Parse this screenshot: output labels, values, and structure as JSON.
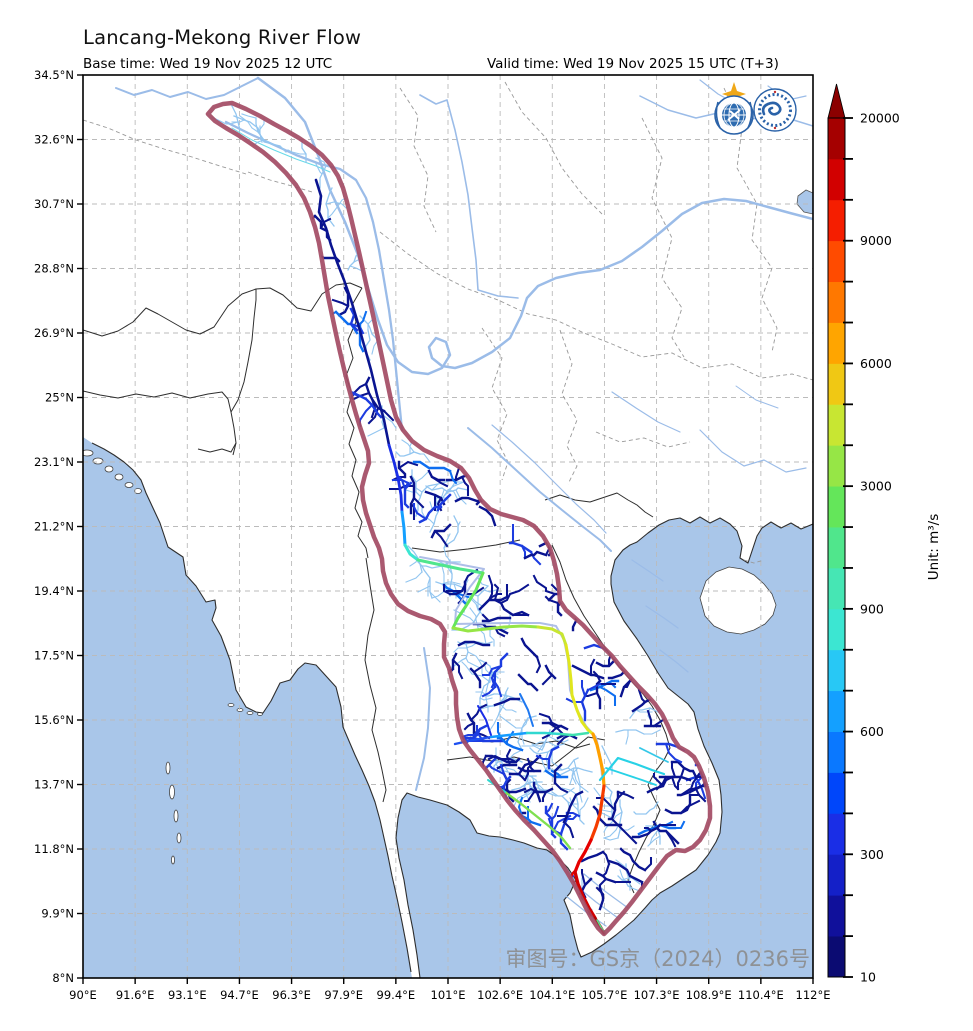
{
  "header": {
    "title": "Lancang-Mekong River Flow",
    "base_time": "Base time: Wed 19 Nov 2025 12 UTC",
    "valid_time": "Valid time: Wed 19 Nov 2025 15 UTC (T+3)"
  },
  "axes": {
    "x_ticks": [
      "90°E",
      "91.6°E",
      "93.1°E",
      "94.7°E",
      "96.3°E",
      "97.9°E",
      "99.4°E",
      "101°E",
      "102.6°E",
      "104.1°E",
      "105.7°E",
      "107.3°E",
      "108.9°E",
      "110.4°E",
      "112°E"
    ],
    "y_ticks_bottom_to_top": [
      "8°N",
      "9.9°N",
      "11.8°N",
      "13.7°N",
      "15.6°N",
      "17.5°N",
      "19.4°N",
      "21.2°N",
      "23.1°N",
      "25°N",
      "26.9°N",
      "28.8°N",
      "30.7°N",
      "32.6°N",
      "34.5°N"
    ]
  },
  "colorbar": {
    "unit_label": "Unit: m³/s",
    "levels_bottom_to_top": [
      10,
      100,
      200,
      300,
      400,
      500,
      600,
      700,
      800,
      900,
      1000,
      2000,
      3000,
      4000,
      5000,
      6000,
      7000,
      8000,
      9000,
      10000,
      15000,
      20000
    ],
    "labeled_levels": [
      10,
      300,
      600,
      900,
      3000,
      6000,
      9000,
      20000
    ],
    "colors_bottom_to_top": [
      "#0B0B72",
      "#10109B",
      "#1420C8",
      "#1A2EE6",
      "#0046FA",
      "#0A78FF",
      "#14A0FF",
      "#28C8F5",
      "#3CE6D2",
      "#46E6B4",
      "#50E68C",
      "#64E65A",
      "#96E646",
      "#C8E632",
      "#F0C814",
      "#FFA500",
      "#FF7800",
      "#FF4B00",
      "#F51E00",
      "#D20000",
      "#A50000"
    ],
    "arrow_color": "#8B0000"
  },
  "map": {
    "watermark": "审图号：GS京（2024）0236号",
    "colors": {
      "sea": "#A9C6E9",
      "land": "#FFFFFF",
      "basin_outline": "#A34B64",
      "river_background": "#9BBCE8",
      "river_light": "#93C6F0",
      "river_low_flow": "#0A1490",
      "border": "#2E2E2E",
      "grid": "#BBBBBB"
    }
  },
  "logos": {
    "wmo": "wmo-logo",
    "cma": "cma-logo"
  }
}
